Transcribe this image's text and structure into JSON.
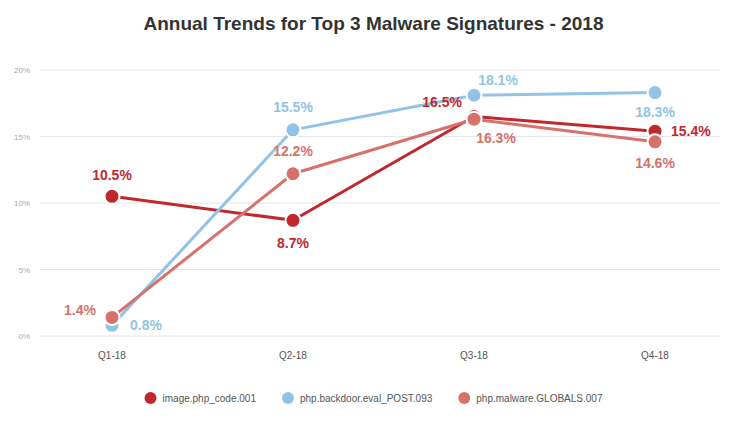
{
  "chart_data": {
    "type": "line",
    "title": "Annual Trends for Top 3 Malware Signatures - 2018",
    "categories": [
      "Q1-18",
      "Q2-18",
      "Q3-18",
      "Q4-18"
    ],
    "series": [
      {
        "name": "image.php_code.001",
        "color": "#c0282d",
        "marker": "circle",
        "values": [
          10.5,
          8.7,
          16.5,
          15.4
        ],
        "value_labels": [
          "10.5%",
          "8.7%",
          "16.5%",
          "15.4%"
        ]
      },
      {
        "name": "php.backdoor.eval_POST.093",
        "color": "#92c3e6",
        "marker": "circle",
        "values": [
          0.8,
          15.5,
          18.1,
          18.3
        ],
        "value_labels": [
          "0.8%",
          "15.5%",
          "18.1%",
          "18.3%"
        ]
      },
      {
        "name": "php.malware.GLOBALS.007",
        "color": "#d6716b",
        "marker": "circle",
        "values": [
          1.4,
          12.2,
          16.3,
          14.6
        ],
        "value_labels": [
          "1.4%",
          "12.2%",
          "16.3%",
          "14.6%"
        ]
      }
    ],
    "ylim": [
      0,
      20
    ],
    "yticks": [
      {
        "value": 0,
        "label": "0%"
      },
      {
        "value": 5,
        "label": "5%"
      },
      {
        "value": 10,
        "label": "10%"
      },
      {
        "value": 15,
        "label": "15%"
      },
      {
        "value": 20,
        "label": "20%"
      }
    ],
    "grid": true,
    "legend": "bottom",
    "data_labels": true
  }
}
